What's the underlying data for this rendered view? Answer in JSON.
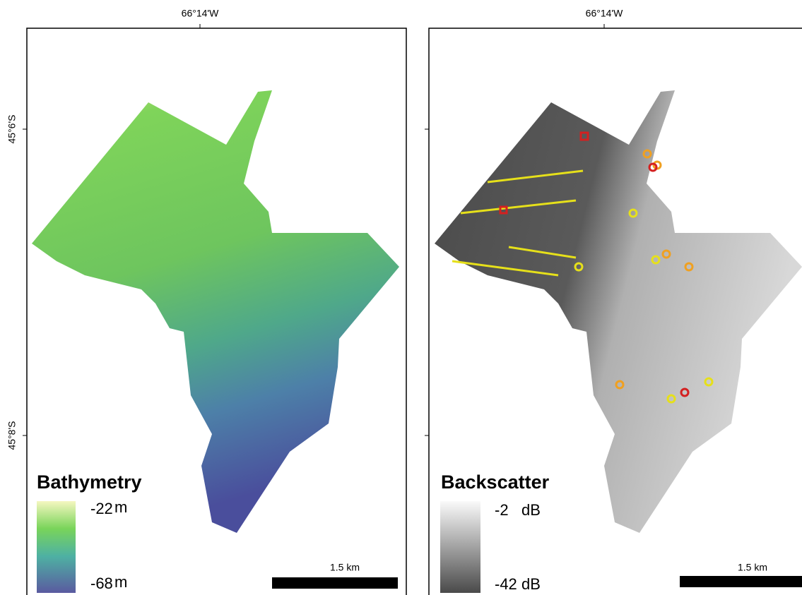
{
  "left_panel": {
    "top_label": "66°14'W",
    "side_labels": [
      "45°6'S",
      "45°8'S"
    ],
    "legend": {
      "title": "Bathymetry",
      "max": "-22",
      "max_unit": "m",
      "min": "-68",
      "min_unit": "m"
    },
    "scale_bar": "1.5 km"
  },
  "right_panel": {
    "top_label": "66°14'W",
    "legend": {
      "title": "Backscatter",
      "max": "-2",
      "max_unit": "dB",
      "min": "-42",
      "min_unit": "dB"
    },
    "scale_bar": "1.5 km"
  }
}
